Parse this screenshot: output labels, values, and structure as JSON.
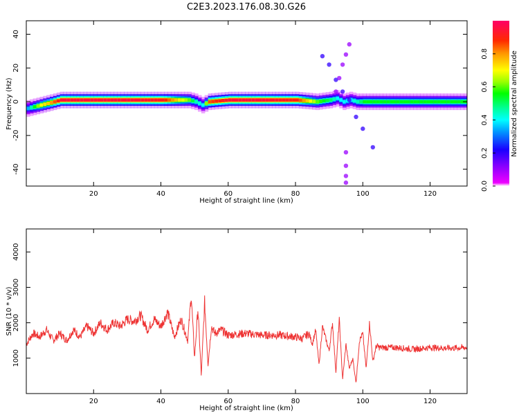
{
  "figure_title": "C2E3.2023.176.08.30.G26",
  "chart_data": [
    {
      "type": "heatmap",
      "xlabel": "Height of straight line (km)",
      "ylabel": "Frequency (Hz)",
      "xlim": [
        0,
        131
      ],
      "ylim": [
        -50,
        48
      ],
      "x_ticks": [
        20,
        40,
        60,
        80,
        100,
        120
      ],
      "y_ticks": [
        -40,
        -20,
        0,
        20,
        40
      ],
      "colorbar": {
        "label": "Normalized spectral amplitude",
        "range": [
          0,
          1
        ],
        "ticks": [
          0.0,
          0.2,
          0.4,
          0.6,
          0.8
        ],
        "colormap": "gist_rainbow_r",
        "low_color": "#ffffff"
      },
      "dominant_frequency_track": {
        "height_km": [
          0,
          2,
          4,
          6,
          8,
          10,
          20,
          30,
          40,
          48,
          50,
          52,
          54,
          60,
          70,
          80,
          86,
          90,
          92,
          94,
          96,
          98,
          100,
          110,
          120,
          131
        ],
        "frequency_hz": [
          -4,
          -3,
          -2,
          -1,
          0,
          1,
          1,
          1,
          1,
          1,
          0,
          -2,
          0,
          1,
          1,
          1,
          0,
          1,
          2,
          0,
          1,
          0,
          0,
          0,
          0,
          0
        ],
        "normalized_amplitude": [
          0.35,
          0.55,
          0.7,
          0.75,
          0.85,
          0.95,
          0.95,
          0.95,
          0.92,
          0.6,
          0.45,
          0.4,
          0.85,
          0.95,
          0.95,
          0.9,
          0.6,
          0.5,
          0.4,
          0.4,
          0.4,
          0.45,
          0.55,
          0.55,
          0.55,
          0.55
        ]
      },
      "scattered_features": [
        {
          "height_km": [
            88,
            90,
            92,
            94,
            96,
            98,
            100,
            103
          ],
          "frequency_hz": [
            27,
            22,
            13,
            6,
            1,
            -9,
            -16,
            -27
          ],
          "normalized_amplitude": 0.2
        },
        {
          "height_km": [
            92,
            93,
            94,
            95,
            96
          ],
          "frequency_hz": [
            6,
            14,
            22,
            28,
            34
          ],
          "normalized_amplitude": 0.1
        },
        {
          "height_km": [
            95,
            95,
            95,
            95
          ],
          "frequency_hz": [
            -30,
            -38,
            -44,
            -48
          ],
          "normalized_amplitude": 0.1
        }
      ]
    },
    {
      "type": "line",
      "xlabel": "Height of straight line (km)",
      "ylabel": "SNR (10 * v/v)",
      "xlim": [
        0,
        131
      ],
      "ylim": [
        0,
        4650
      ],
      "x_ticks": [
        20,
        40,
        60,
        80,
        100,
        120
      ],
      "y_ticks": [
        1000,
        2000,
        3000,
        4000
      ],
      "color": "#ee3333",
      "series": [
        {
          "x": [
            0,
            2,
            4,
            6,
            8,
            10,
            12,
            14,
            16,
            18,
            20,
            22,
            24,
            26,
            28,
            30,
            32,
            34,
            36,
            38,
            40,
            42,
            44,
            46,
            48,
            49,
            50,
            51,
            52,
            53,
            54,
            55,
            56,
            58,
            60,
            65,
            70,
            75,
            80,
            82,
            84,
            85,
            86,
            87,
            88,
            90,
            91,
            92,
            93,
            94,
            95,
            96,
            97,
            98,
            99,
            100,
            101,
            102,
            103,
            104,
            105,
            110,
            115,
            120,
            125,
            131
          ],
          "y": [
            1400,
            1700,
            1600,
            1800,
            1500,
            1700,
            1500,
            1800,
            1600,
            1900,
            1700,
            2000,
            1800,
            2000,
            1900,
            2100,
            2050,
            2200,
            1800,
            2100,
            1900,
            2300,
            1600,
            2100,
            1500,
            2800,
            1000,
            2400,
            500,
            2600,
            800,
            1900,
            1700,
            1800,
            1650,
            1700,
            1650,
            1650,
            1600,
            1550,
            1700,
            1400,
            1800,
            800,
            1900,
            1200,
            2000,
            600,
            2100,
            400,
            1400,
            700,
            1000,
            300,
            1500,
            1700,
            700,
            2000,
            900,
            1350,
            1300,
            1300,
            1250,
            1300,
            1280,
            1300
          ]
        }
      ]
    }
  ]
}
